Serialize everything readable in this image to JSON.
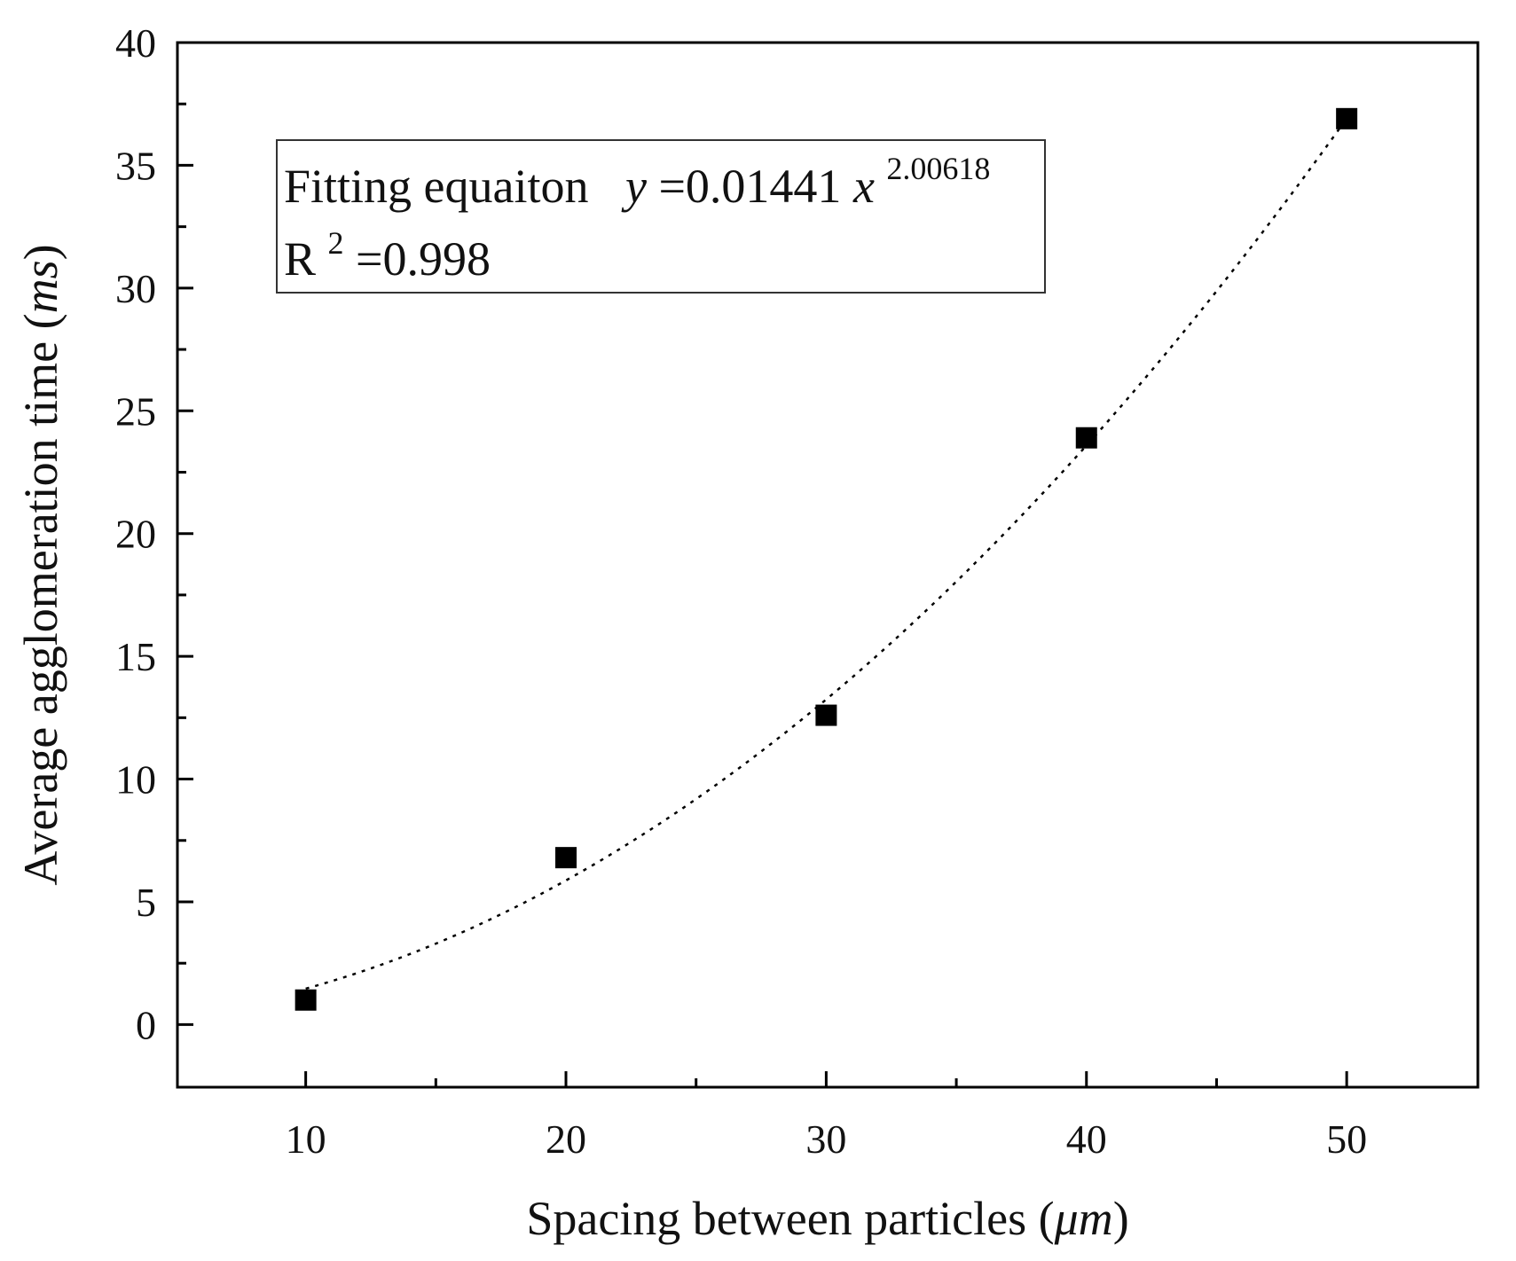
{
  "chart_data": {
    "type": "scatter",
    "title": "",
    "xlabel": {
      "main": "Spacing between particles (",
      "unit": "μm",
      "close": ")"
    },
    "ylabel": {
      "main": "Average agglomeration time (",
      "unit": "ms",
      "close": ")"
    },
    "xlim": [
      5.07,
      55.04
    ],
    "ylim": [
      -2.55,
      40.0
    ],
    "xticks": [
      10,
      20,
      30,
      40,
      50
    ],
    "xticks_minor": [
      15,
      25,
      35,
      45
    ],
    "yticks": [
      0,
      5,
      10,
      15,
      20,
      25,
      30,
      35,
      40
    ],
    "grid": false,
    "series": [
      {
        "name": "Average agglomeration time",
        "marker": "square",
        "color": "#000000",
        "x": [
          10,
          20,
          30,
          40,
          50
        ],
        "y": [
          1.0,
          6.8,
          12.6,
          23.9,
          36.9
        ]
      }
    ],
    "fit": {
      "model": "power",
      "a": 0.01441,
      "b": 2.00618,
      "x_range": [
        10,
        50
      ],
      "style": "dotted",
      "color": "#000000"
    },
    "annotation": {
      "line1_label": "Fitting equaiton",
      "line1_y": "y",
      "line1_eq": "=0.01441",
      "line1_x": "x",
      "line1_exp": "2.00618",
      "line2_R": "R",
      "line2_sup": "2",
      "line2_val": "=0.998"
    }
  }
}
